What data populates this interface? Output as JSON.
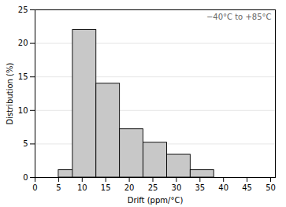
{
  "chart_data": {
    "type": "bar",
    "x": [
      5,
      8,
      13,
      18,
      23,
      28,
      33
    ],
    "width": 5,
    "values": [
      1.1,
      22.0,
      14.0,
      7.2,
      5.2,
      3.4,
      1.1
    ],
    "color": "#c8c8c8",
    "xlabel": "Drift (ppm/°C)",
    "ylabel": "Distribution (%)",
    "xlim": [
      0,
      51
    ],
    "ylim": [
      0,
      25
    ],
    "xticks": [
      0,
      5,
      10,
      15,
      20,
      25,
      30,
      35,
      40,
      45,
      50
    ],
    "yticks": [
      0,
      5,
      10,
      15,
      20,
      25
    ],
    "annotation": "−40°C to +85°C",
    "grid": true
  }
}
